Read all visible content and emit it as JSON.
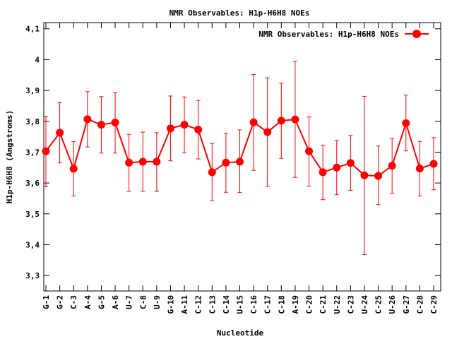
{
  "chart_data": {
    "type": "line",
    "title": "NMR Observables: H1p-H6H8 NOEs",
    "xlabel": "Nucleotide",
    "ylabel": "H1p-H6H8 (Angstroms)",
    "ylim": [
      3.25,
      4.12
    ],
    "yticks": [
      3.3,
      3.4,
      3.5,
      3.6,
      3.7,
      3.8,
      3.9,
      4,
      4.1
    ],
    "ytick_labels": [
      "3,3",
      "3,4",
      "3,5",
      "3,6",
      "3,7",
      "3,8",
      "3,9",
      "4",
      "4,1"
    ],
    "grid": false,
    "legend": "top-right",
    "color": "#ff0000",
    "categories": [
      "G-1",
      "G-2",
      "C-3",
      "A-4",
      "G-5",
      "A-6",
      "U-7",
      "C-8",
      "U-9",
      "G-10",
      "A-11",
      "C-12",
      "C-13",
      "C-14",
      "U-15",
      "C-16",
      "C-17",
      "C-18",
      "A-19",
      "C-20",
      "C-21",
      "U-22",
      "C-23",
      "U-24",
      "C-25",
      "U-26",
      "G-27",
      "C-28",
      "C-29"
    ],
    "series": [
      {
        "name": "NMR Observables: H1p-H6H8 NOEs",
        "values": [
          3.703,
          3.763,
          3.646,
          3.807,
          3.789,
          3.796,
          3.666,
          3.669,
          3.669,
          3.777,
          3.789,
          3.773,
          3.635,
          3.666,
          3.669,
          3.797,
          3.765,
          3.802,
          3.806,
          3.703,
          3.635,
          3.65,
          3.665,
          3.625,
          3.623,
          3.656,
          3.794,
          3.647,
          3.662
        ],
        "err_low": [
          3.588,
          3.665,
          3.558,
          3.717,
          3.697,
          3.697,
          3.573,
          3.573,
          3.573,
          3.672,
          3.698,
          3.678,
          3.543,
          3.57,
          3.569,
          3.641,
          3.589,
          3.68,
          3.618,
          3.59,
          3.546,
          3.562,
          3.576,
          3.368,
          3.53,
          3.567,
          3.704,
          3.558,
          3.578
        ],
        "err_high": [
          3.816,
          3.86,
          3.734,
          3.896,
          3.88,
          3.893,
          3.758,
          3.765,
          3.763,
          3.882,
          3.879,
          3.868,
          3.728,
          3.761,
          3.772,
          3.952,
          3.941,
          3.924,
          3.995,
          3.814,
          3.723,
          3.738,
          3.754,
          3.881,
          3.72,
          3.744,
          3.885,
          3.735,
          3.747
        ]
      }
    ]
  }
}
